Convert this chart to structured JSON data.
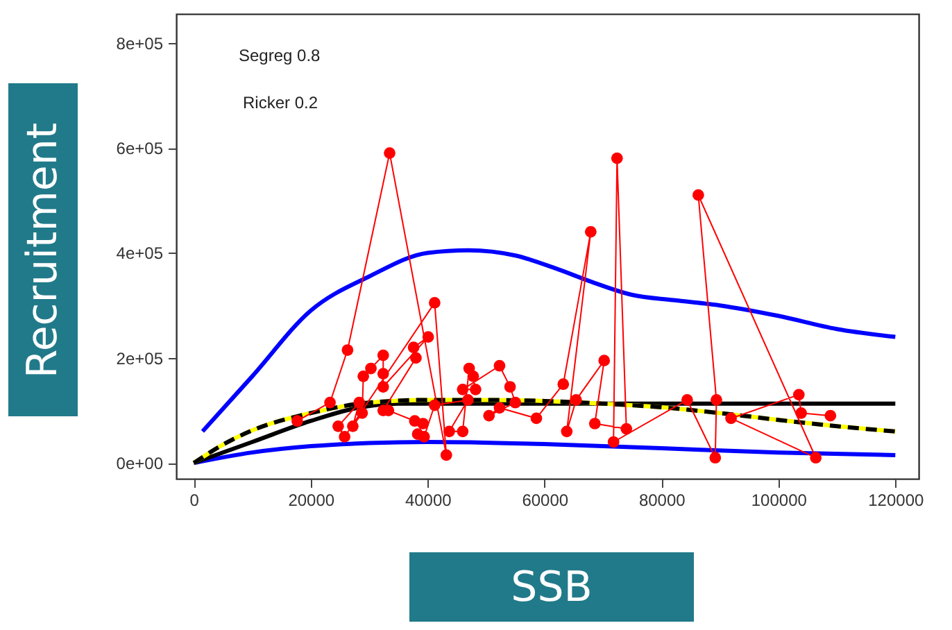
{
  "chart_data": {
    "type": "line",
    "xlabel": "SSB",
    "ylabel": "Recruitment",
    "annotations": [
      "Segreg 0.8",
      "Ricker 0.2"
    ],
    "xlim": [
      -3000,
      124000
    ],
    "ylim": [
      -30000,
      855000
    ],
    "xticks": [
      0,
      20000,
      40000,
      60000,
      80000,
      100000,
      120000
    ],
    "yticks": [
      {
        "value": 0,
        "label": "0e+00"
      },
      {
        "value": 200000,
        "label": "2e+05"
      },
      {
        "value": 400000,
        "label": "4e+05"
      },
      {
        "value": 600000,
        "label": "6e+05"
      },
      {
        "value": 800000,
        "label": "8e+05"
      }
    ],
    "grid": false,
    "series": [
      {
        "color": "#0000ff",
        "line_style": "solid",
        "marker": "none",
        "x": [
          1500,
          10000,
          20000,
          30000,
          40000,
          47000,
          55000,
          62000,
          68000,
          75000,
          82000,
          90000,
          100000,
          110000,
          120000
        ],
        "values": [
          60000,
          165000,
          290000,
          355000,
          400000,
          405000,
          395000,
          370000,
          345000,
          320000,
          310000,
          300000,
          280000,
          255000,
          240000
        ]
      },
      {
        "color": "#0000ff",
        "line_style": "solid",
        "marker": "none",
        "x": [
          0,
          10000,
          20000,
          30000,
          40000,
          60000,
          80000,
          100000,
          120000
        ],
        "values": [
          0,
          20000,
          32000,
          38000,
          40000,
          36000,
          28000,
          20000,
          15000
        ]
      },
      {
        "color": "#000000",
        "line_style": "solid",
        "marker": "none",
        "x": [
          0,
          10000,
          20000,
          28000,
          35000,
          45000,
          120000
        ],
        "values": [
          0,
          40000,
          80000,
          105000,
          113000,
          113000,
          113000
        ]
      },
      {
        "color": "#ffff00",
        "line_style": "solid",
        "marker": "none",
        "x": [
          0,
          5000,
          10000,
          20000,
          30000,
          40000,
          50000,
          60000,
          70000,
          80000,
          90000,
          100000,
          110000,
          120000
        ],
        "values": [
          0,
          35000,
          62000,
          95000,
          115000,
          120000,
          120000,
          118000,
          113000,
          106000,
          95000,
          82000,
          70000,
          60000
        ]
      },
      {
        "color": "#000000",
        "line_style": "dashed",
        "marker": "none",
        "x": [
          0,
          5000,
          10000,
          20000,
          30000,
          40000,
          50000,
          60000,
          70000,
          80000,
          90000,
          100000,
          110000,
          120000
        ],
        "values": [
          0,
          35000,
          62000,
          95000,
          115000,
          120000,
          120000,
          118000,
          113000,
          106000,
          95000,
          82000,
          70000,
          60000
        ]
      },
      {
        "color": "#ff0000",
        "line_style": "solid",
        "marker": "circle",
        "x": [
          17700,
          23300,
          26300,
          33500,
          43200,
          41200,
          25800,
          24700,
          28300,
          27200,
          28800,
          29000,
          30300,
          32400,
          32400,
          32400,
          40100,
          37600,
          38000,
          32400,
          33300,
          37800,
          39200,
          38300,
          39400,
          41200,
          46900,
          43700,
          46000,
          47100,
          47800,
          48200,
          46000,
          52300,
          54100,
          55000,
          50500,
          52300,
          58600,
          63200,
          67900,
          63800,
          65400,
          70200,
          68600,
          74000,
          72400,
          71800,
          84400,
          89200,
          89400,
          86300,
          106400,
          91900,
          103500,
          103900,
          108900
        ],
        "values": [
          80000,
          115000,
          215000,
          590000,
          15000,
          305000,
          50000,
          70000,
          115000,
          70000,
          95000,
          165000,
          180000,
          205000,
          170000,
          145000,
          240000,
          220000,
          200000,
          100000,
          100000,
          80000,
          75000,
          55000,
          50000,
          110000,
          120000,
          60000,
          60000,
          180000,
          165000,
          140000,
          140000,
          185000,
          145000,
          115000,
          90000,
          105000,
          85000,
          150000,
          440000,
          60000,
          120000,
          195000,
          75000,
          65000,
          580000,
          40000,
          120000,
          10000,
          120000,
          510000,
          10000,
          85000,
          130000,
          95000,
          90000
        ]
      }
    ]
  }
}
